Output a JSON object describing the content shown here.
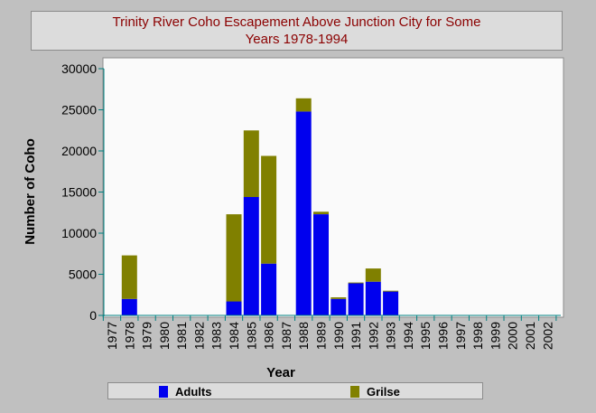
{
  "colors": {
    "background": "#c0c0c0",
    "plot_background": "#fafafa",
    "title": "#8b0000",
    "axis": "#008080",
    "adults": "#0000ee",
    "grilse": "#808000"
  },
  "chart_data": {
    "type": "bar",
    "stacked": true,
    "title_lines": [
      "Trinity River Coho Escapement Above Junction City for Some",
      "Years 1978-1994"
    ],
    "xlabel": "Year",
    "ylabel": "Number of Coho",
    "ylim": [
      0,
      30000
    ],
    "yticks": [
      "0",
      "5000",
      "10000",
      "15000",
      "20000",
      "25000",
      "30000"
    ],
    "categories": [
      "1977",
      "1978",
      "1979",
      "1980",
      "1981",
      "1982",
      "1983",
      "1984",
      "1985",
      "1986",
      "1987",
      "1988",
      "1989",
      "1990",
      "1991",
      "1992",
      "1993",
      "1994",
      "1995",
      "1996",
      "1997",
      "1998",
      "1999",
      "2000",
      "2001",
      "2002"
    ],
    "series": [
      {
        "name": "Adults",
        "color": "#0000ee",
        "values": [
          0,
          2000,
          0,
          0,
          0,
          0,
          0,
          1700,
          14400,
          6300,
          0,
          24800,
          12300,
          2000,
          3900,
          4100,
          2900,
          0,
          0,
          0,
          0,
          0,
          0,
          0,
          0,
          0
        ]
      },
      {
        "name": "Grilse",
        "color": "#808000",
        "values": [
          0,
          5300,
          0,
          0,
          0,
          0,
          0,
          10600,
          8100,
          13100,
          0,
          1600,
          300,
          200,
          100,
          1600,
          100,
          0,
          0,
          0,
          0,
          0,
          0,
          0,
          0,
          0
        ]
      }
    ],
    "grid": false,
    "legend_position": "bottom"
  }
}
